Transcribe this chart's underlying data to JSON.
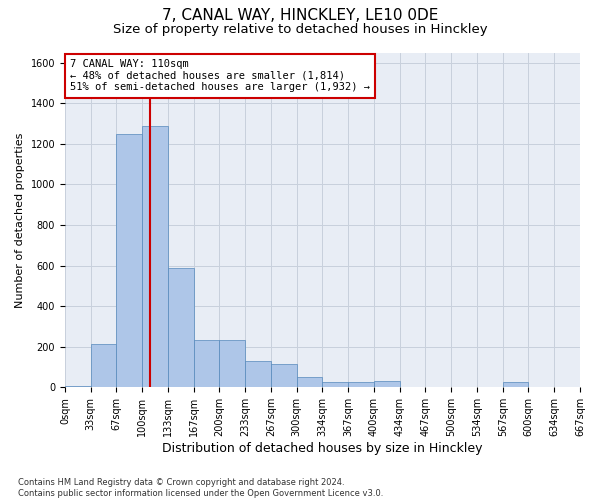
{
  "title1": "7, CANAL WAY, HINCKLEY, LE10 0DE",
  "title2": "Size of property relative to detached houses in Hinckley",
  "xlabel": "Distribution of detached houses by size in Hinckley",
  "ylabel": "Number of detached properties",
  "footnote": "Contains HM Land Registry data © Crown copyright and database right 2024.\nContains public sector information licensed under the Open Government Licence v3.0.",
  "bar_values": [
    5,
    215,
    1250,
    1290,
    590,
    235,
    235,
    130,
    115,
    50,
    25,
    25,
    30,
    0,
    0,
    0,
    0,
    25,
    0,
    0
  ],
  "bin_labels": [
    "0sqm",
    "33sqm",
    "67sqm",
    "100sqm",
    "133sqm",
    "167sqm",
    "200sqm",
    "233sqm",
    "267sqm",
    "300sqm",
    "334sqm",
    "367sqm",
    "400sqm",
    "434sqm",
    "467sqm",
    "500sqm",
    "534sqm",
    "567sqm",
    "600sqm",
    "634sqm",
    "667sqm"
  ],
  "bar_color": "#aec6e8",
  "bar_edge_color": "#5588bb",
  "vline_color": "#cc0000",
  "annotation_text": "7 CANAL WAY: 110sqm\n← 48% of detached houses are smaller (1,814)\n51% of semi-detached houses are larger (1,932) →",
  "annotation_box_color": "#ffffff",
  "annotation_box_edge": "#cc0000",
  "ylim": [
    0,
    1650
  ],
  "yticks": [
    0,
    200,
    400,
    600,
    800,
    1000,
    1200,
    1400,
    1600
  ],
  "grid_color": "#c8d0dc",
  "bg_color": "#e8edf5",
  "title1_fontsize": 11,
  "title2_fontsize": 9.5,
  "xlabel_fontsize": 9,
  "ylabel_fontsize": 8,
  "annotation_fontsize": 7.5,
  "tick_fontsize": 7
}
